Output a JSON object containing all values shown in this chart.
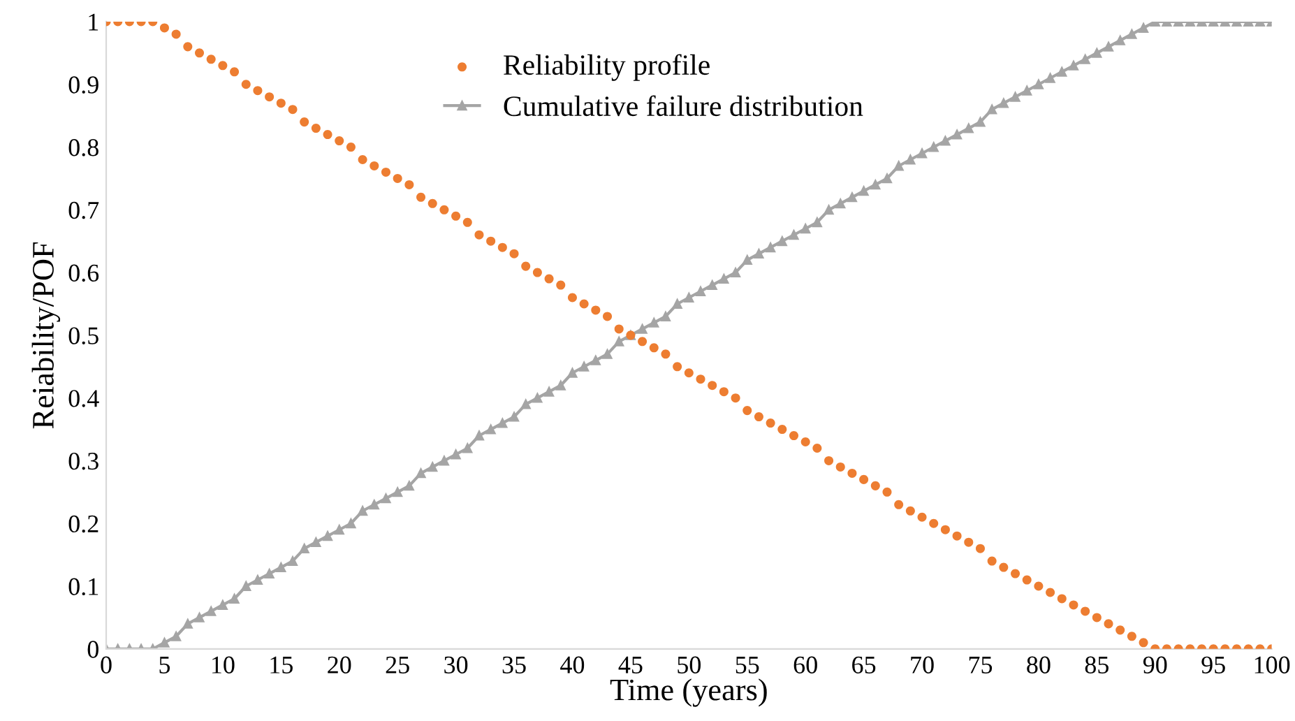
{
  "chart_data": {
    "type": "scatter",
    "xlabel": "Time (years)",
    "ylabel": "Reiability/POF",
    "x": [
      0,
      1,
      2,
      3,
      4,
      5,
      6,
      7,
      8,
      9,
      10,
      11,
      12,
      13,
      14,
      15,
      16,
      17,
      18,
      19,
      20,
      21,
      22,
      23,
      24,
      25,
      26,
      27,
      28,
      29,
      30,
      31,
      32,
      33,
      34,
      35,
      36,
      37,
      38,
      39,
      40,
      41,
      42,
      43,
      44,
      45,
      46,
      47,
      48,
      49,
      50,
      51,
      52,
      53,
      54,
      55,
      56,
      57,
      58,
      59,
      60,
      61,
      62,
      63,
      64,
      65,
      66,
      67,
      68,
      69,
      70,
      71,
      72,
      73,
      74,
      75,
      76,
      77,
      78,
      79,
      80,
      81,
      82,
      83,
      84,
      85,
      86,
      87,
      88,
      89,
      90,
      91,
      92,
      93,
      94,
      95,
      96,
      97,
      98,
      99,
      100
    ],
    "series": [
      {
        "name": "Reliability profile",
        "marker": "circle",
        "color": "#ed7d31",
        "values": [
          1,
          1,
          1,
          1,
          1,
          0.99,
          0.98,
          0.96,
          0.95,
          0.94,
          0.93,
          0.92,
          0.9,
          0.89,
          0.88,
          0.87,
          0.86,
          0.84,
          0.83,
          0.82,
          0.81,
          0.8,
          0.78,
          0.77,
          0.76,
          0.75,
          0.74,
          0.72,
          0.71,
          0.7,
          0.69,
          0.68,
          0.66,
          0.65,
          0.64,
          0.63,
          0.61,
          0.6,
          0.59,
          0.58,
          0.56,
          0.55,
          0.54,
          0.53,
          0.51,
          0.5,
          0.49,
          0.48,
          0.47,
          0.45,
          0.44,
          0.43,
          0.42,
          0.41,
          0.4,
          0.38,
          0.37,
          0.36,
          0.35,
          0.34,
          0.33,
          0.32,
          0.3,
          0.29,
          0.28,
          0.27,
          0.26,
          0.25,
          0.23,
          0.22,
          0.21,
          0.2,
          0.19,
          0.18,
          0.17,
          0.16,
          0.14,
          0.13,
          0.12,
          0.11,
          0.1,
          0.09,
          0.08,
          0.07,
          0.06,
          0.05,
          0.04,
          0.03,
          0.02,
          0.01,
          0,
          0,
          0,
          0,
          0,
          0,
          0,
          0,
          0,
          0,
          0
        ]
      },
      {
        "name": "Cumulative failure distribution",
        "type": "line",
        "marker": "triangle",
        "line_style": "solid",
        "color": "#a5a5a5",
        "values": [
          0,
          0,
          0,
          0,
          0,
          0.01,
          0.02,
          0.04,
          0.05,
          0.06,
          0.07,
          0.08,
          0.1,
          0.11,
          0.12,
          0.13,
          0.14,
          0.16,
          0.17,
          0.18,
          0.19,
          0.2,
          0.22,
          0.23,
          0.24,
          0.25,
          0.26,
          0.28,
          0.29,
          0.3,
          0.31,
          0.32,
          0.34,
          0.35,
          0.36,
          0.37,
          0.39,
          0.4,
          0.41,
          0.42,
          0.44,
          0.45,
          0.46,
          0.47,
          0.49,
          0.5,
          0.51,
          0.52,
          0.53,
          0.55,
          0.56,
          0.57,
          0.58,
          0.59,
          0.6,
          0.62,
          0.63,
          0.64,
          0.65,
          0.66,
          0.67,
          0.68,
          0.7,
          0.71,
          0.72,
          0.73,
          0.74,
          0.75,
          0.77,
          0.78,
          0.79,
          0.8,
          0.81,
          0.82,
          0.83,
          0.84,
          0.86,
          0.87,
          0.88,
          0.89,
          0.9,
          0.91,
          0.92,
          0.93,
          0.94,
          0.95,
          0.96,
          0.97,
          0.98,
          0.99,
          1,
          1,
          1,
          1,
          1,
          1,
          1,
          1,
          1,
          1,
          1
        ]
      }
    ],
    "xlim": [
      0,
      100
    ],
    "xticks": [
      0,
      5,
      10,
      15,
      20,
      25,
      30,
      35,
      40,
      45,
      50,
      55,
      60,
      65,
      70,
      75,
      80,
      85,
      90,
      95,
      100
    ],
    "ylim": [
      0,
      1
    ],
    "yticks": [
      0,
      0.1,
      0.2,
      0.3,
      0.4,
      0.5,
      0.6,
      0.7,
      0.8,
      0.9,
      1
    ],
    "legend": "top",
    "grid": false
  }
}
